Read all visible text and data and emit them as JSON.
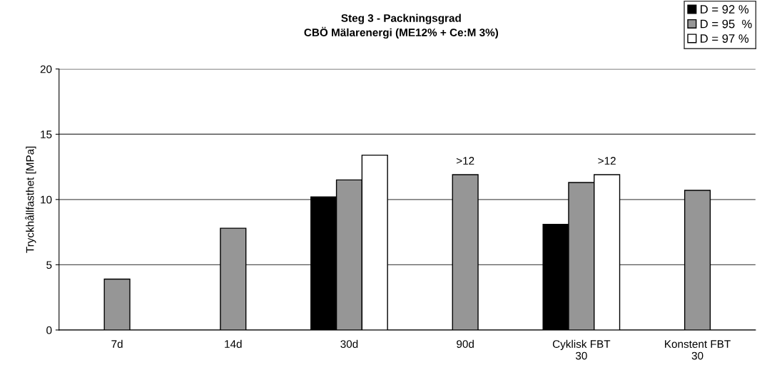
{
  "chart_data": {
    "type": "bar",
    "title": "Steg 3 - Packningsgrad\nCBÖ Mälarenergi (ME12% + Ce:M 3%)",
    "ylabel": "Tryckhållfasthet [MPa]",
    "categories": [
      "7d",
      "14d",
      "30d",
      "90d",
      "Cyklisk FBT\n30",
      "Konstent FBT\n30"
    ],
    "series": [
      {
        "name": "D = 92 %",
        "color": "#000000",
        "values": [
          null,
          null,
          10.2,
          null,
          8.1,
          null
        ]
      },
      {
        "name": "D = 95  %",
        "color": "#969696",
        "values": [
          3.9,
          7.8,
          11.5,
          11.9,
          11.3,
          10.7
        ],
        "value_labels": [
          null,
          null,
          null,
          ">12",
          null,
          null
        ]
      },
      {
        "name": "D = 97 %",
        "color": "#ffffff",
        "values": [
          null,
          null,
          13.4,
          null,
          11.9,
          null
        ],
        "value_labels": [
          null,
          null,
          null,
          null,
          ">12",
          null
        ]
      }
    ],
    "ylim": [
      0,
      20
    ],
    "yticks": [
      0,
      5,
      10,
      15,
      20
    ],
    "grid": "y",
    "legend": "top right"
  }
}
